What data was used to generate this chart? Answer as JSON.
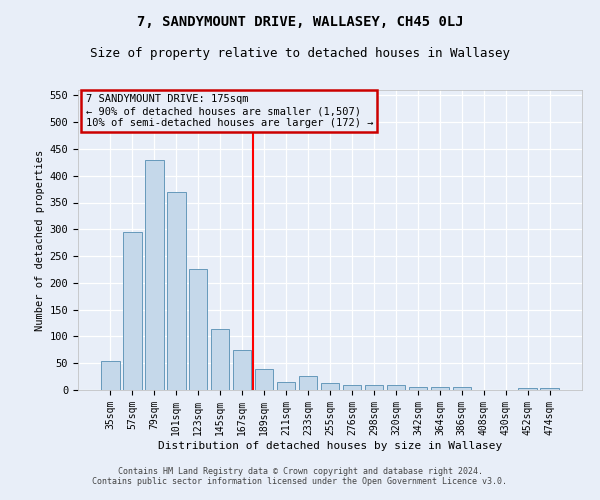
{
  "title": "7, SANDYMOUNT DRIVE, WALLASEY, CH45 0LJ",
  "subtitle": "Size of property relative to detached houses in Wallasey",
  "xlabel": "Distribution of detached houses by size in Wallasey",
  "ylabel": "Number of detached properties",
  "footer_line1": "Contains HM Land Registry data © Crown copyright and database right 2024.",
  "footer_line2": "Contains public sector information licensed under the Open Government Licence v3.0.",
  "categories": [
    "35sqm",
    "57sqm",
    "79sqm",
    "101sqm",
    "123sqm",
    "145sqm",
    "167sqm",
    "189sqm",
    "211sqm",
    "233sqm",
    "255sqm",
    "276sqm",
    "298sqm",
    "320sqm",
    "342sqm",
    "364sqm",
    "386sqm",
    "408sqm",
    "430sqm",
    "452sqm",
    "474sqm"
  ],
  "values": [
    55,
    295,
    430,
    370,
    225,
    113,
    75,
    40,
    15,
    26,
    14,
    9,
    9,
    10,
    6,
    5,
    5,
    0,
    0,
    3,
    3
  ],
  "bar_color": "#c5d8ea",
  "bar_edge_color": "#6699bb",
  "property_line_index": 6.5,
  "property_line_label": "7 SANDYMOUNT DRIVE: 175sqm",
  "annotation_line1": "← 90% of detached houses are smaller (1,507)",
  "annotation_line2": "10% of semi-detached houses are larger (172) →",
  "annotation_box_edgecolor": "#cc0000",
  "ylim": [
    0,
    560
  ],
  "yticks": [
    0,
    50,
    100,
    150,
    200,
    250,
    300,
    350,
    400,
    450,
    500,
    550
  ],
  "bg_color": "#e8eef8",
  "grid_color": "#ffffff",
  "title_fontsize": 10,
  "subtitle_fontsize": 9,
  "tick_fontsize": 7,
  "ylabel_fontsize": 7.5,
  "xlabel_fontsize": 8
}
